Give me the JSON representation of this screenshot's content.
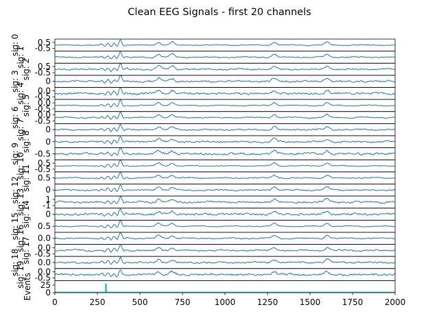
{
  "figure": {
    "title": "Clean EEG Signals - first 20 channels",
    "colors": {
      "signal": "#1f77b4",
      "events": "#17becf",
      "frame": "#000000"
    }
  },
  "chart_data": {
    "type": "line",
    "title": "Clean EEG Signals - first 20 channels",
    "xlim": [
      0,
      2000
    ],
    "x_ticks": [
      0,
      250,
      500,
      750,
      1000,
      1250,
      1500,
      1750,
      2000
    ],
    "x_tick_labels": [
      "0",
      "250",
      "500",
      "750",
      "1000",
      "1250",
      "1500",
      "1750",
      "2000"
    ],
    "n_samples": 2000,
    "shared_peaks_at": [
      385,
      610,
      690,
      1290,
      1600
    ],
    "series": [
      {
        "name": "sig: 0",
        "y_ticks": [
          "0.5",
          "-0.5"
        ]
      },
      {
        "name": "sig: 1",
        "y_ticks": []
      },
      {
        "name": "sig: 2",
        "y_ticks": [
          "0.5",
          "-0.5"
        ]
      },
      {
        "name": "sig: 3",
        "y_ticks": [
          "0"
        ]
      },
      {
        "name": "sig: 4",
        "y_ticks": [
          "0.0",
          "-0.5"
        ]
      },
      {
        "name": "sig: 5",
        "y_ticks": [
          "0.0",
          "-0.5"
        ]
      },
      {
        "name": "sig: 6",
        "y_ticks": [
          "0.0",
          "-0.5"
        ]
      },
      {
        "name": "sig: 7",
        "y_ticks": [
          "0"
        ]
      },
      {
        "name": "sig: 8",
        "y_ticks": [
          "0"
        ]
      },
      {
        "name": "sig: 9",
        "y_ticks": [
          "-0.5"
        ]
      },
      {
        "name": "sig: 10",
        "y_ticks": [
          "0.5",
          "-0.5"
        ]
      },
      {
        "name": "sig: 11",
        "y_ticks": [
          "0.5"
        ]
      },
      {
        "name": "sig: 12",
        "y_ticks": [
          "0"
        ]
      },
      {
        "name": "sig: 13",
        "y_ticks": [
          "1",
          "-1"
        ]
      },
      {
        "name": "sig: 14",
        "y_ticks": [
          "0"
        ]
      },
      {
        "name": "sig: 15",
        "y_ticks": [
          "0.5"
        ]
      },
      {
        "name": "sig: 16",
        "y_ticks": [
          "0.0"
        ]
      },
      {
        "name": "sig: 17",
        "y_ticks": [
          "0.0",
          "-0.5"
        ]
      },
      {
        "name": "sig: 18",
        "y_ticks": [
          "0.0"
        ]
      },
      {
        "name": "sig: 19",
        "y_ticks": [
          "0.0",
          "-0.5"
        ]
      }
    ],
    "events": {
      "name": "Events",
      "y_ticks": [
        "25",
        "0"
      ],
      "ylim": [
        0,
        40
      ],
      "bars": [
        {
          "x": 300,
          "value": 30
        },
        {
          "x": 1100,
          "value": 1
        }
      ]
    }
  }
}
